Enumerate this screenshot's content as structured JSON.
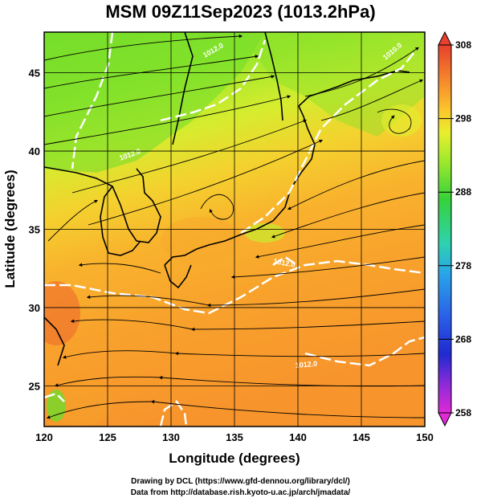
{
  "title": "MSM 09Z11Sep2023 (1013.2hPa)",
  "axes": {
    "xlabel": "Longitude (degrees)",
    "ylabel": "Latitude  (degrees)",
    "xlim": [
      120,
      150
    ],
    "ylim": [
      22.4,
      47.6
    ],
    "xticks": [
      "120",
      "125",
      "130",
      "135",
      "140",
      "145",
      "150"
    ],
    "yticks": [
      "25",
      "30",
      "35",
      "40",
      "45"
    ],
    "grid": true
  },
  "colorbar": {
    "range": [
      258,
      308
    ],
    "tick_labels": [
      "308",
      "298",
      "288",
      "278",
      "268",
      "258"
    ],
    "colors": [
      "#e8402c",
      "#f68b2c",
      "#fbc82c",
      "#e7ef2e",
      "#9ae82c",
      "#36d23a",
      "#2ed2b0",
      "#29a6e8",
      "#2a5fe8",
      "#1f2ad0",
      "#8a2ad8",
      "#e02ad6"
    ]
  },
  "contour_labels": [
    "1012.0",
    "1012.0",
    "1012.0",
    "1012.0",
    "1010.0"
  ],
  "credits": {
    "line1": "Drawing by DCL (https://www.gfd-dennou.org/library/dcl/)",
    "line2": "Data from http://database.rish.kyoto-u.ac.jp/arch/jmadata/"
  }
}
